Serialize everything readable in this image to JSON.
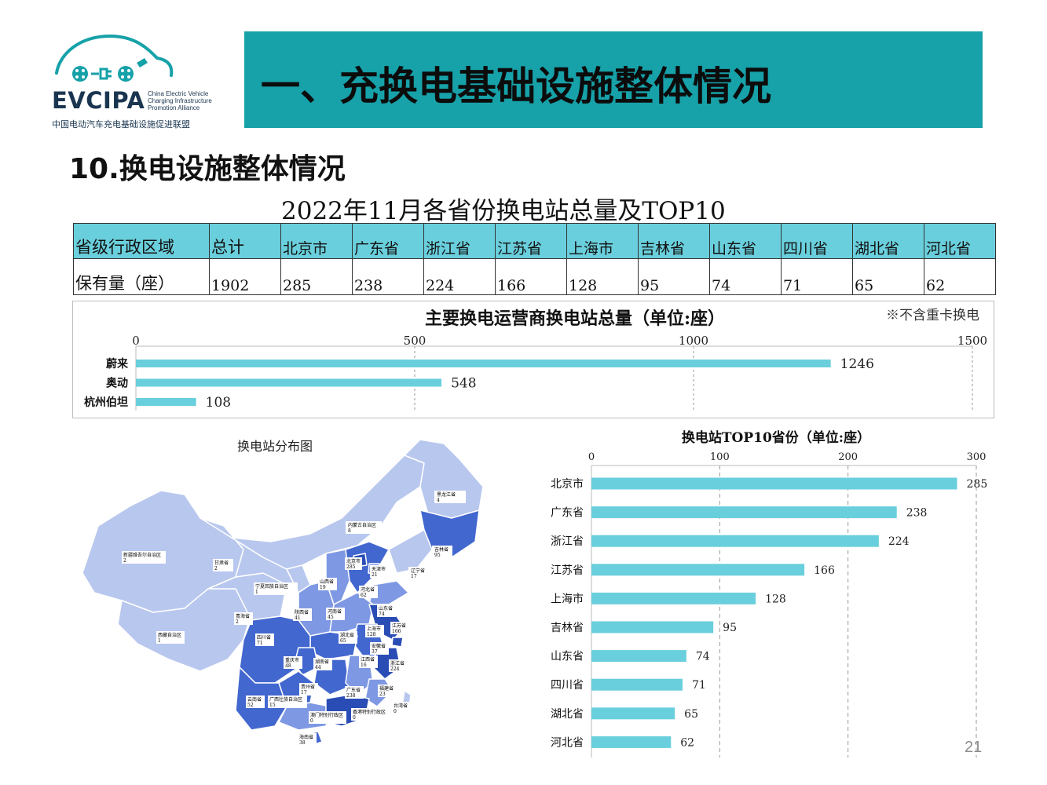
{
  "logo": {
    "acronym": "EVCIPA",
    "english_lines": [
      "China Electric Vehicle",
      "Charging Infrastructure",
      "Promotion Alliance"
    ],
    "chinese_name": "中国电动汽车充电基础设施促进联盟",
    "color": "#17a1a9"
  },
  "header": {
    "title": "一、充换电基础设施整体情况",
    "banner_color": "#17a1a9"
  },
  "section_title": "10.换电设施整体情况",
  "page_number": "21",
  "province_table": {
    "title": "2022年11月各省份换电站总量及TOP10",
    "header_color": "#6acfdc",
    "row_labels": [
      "省级行政区域",
      "保有量（座）"
    ],
    "total_label": "总计",
    "total_value": "1902",
    "columns": [
      "北京市",
      "广东省",
      "浙江省",
      "江苏省",
      "上海市",
      "吉林省",
      "山东省",
      "四川省",
      "湖北省",
      "河北省"
    ],
    "values": [
      "285",
      "238",
      "224",
      "166",
      "128",
      "95",
      "74",
      "71",
      "65",
      "62"
    ]
  },
  "chart_data": [
    {
      "type": "bar",
      "orientation": "horizontal",
      "title": "主要换电运营商换电站总量（单位:座）",
      "note": "※不含重卡换电",
      "categories": [
        "蔚来",
        "奥动",
        "杭州伯坦"
      ],
      "values": [
        1246,
        548,
        108
      ],
      "xlim": [
        0,
        1500
      ],
      "xticks": [
        0,
        500,
        1000,
        1500
      ],
      "xtick_labels": [
        "0",
        "500",
        "1000",
        "1500"
      ],
      "axis_position": "top",
      "grid": true,
      "bar_color": "#6acfdc"
    },
    {
      "type": "bar",
      "orientation": "horizontal",
      "title": "换电站TOP10省份（单位:座）",
      "categories": [
        "北京市",
        "广东省",
        "浙江省",
        "江苏省",
        "上海市",
        "吉林省",
        "山东省",
        "四川省",
        "湖北省",
        "河北省"
      ],
      "values": [
        285,
        238,
        224,
        166,
        128,
        95,
        74,
        71,
        65,
        62
      ],
      "xlim": [
        0,
        300
      ],
      "xticks": [
        0,
        100,
        200,
        300
      ],
      "xtick_labels": [
        "0",
        "100",
        "200",
        "300"
      ],
      "axis_position": "top",
      "grid": true,
      "bar_color": "#6acfdc"
    }
  ],
  "map": {
    "title": "换电站分布图",
    "colors": {
      "light": "#b8c7ee",
      "mid": "#7e98e3",
      "dark": "#4267cf",
      "darkest": "#2a4db5"
    },
    "labels": [
      {
        "name": "黑龙江省",
        "value": "4"
      },
      {
        "name": "吉林省",
        "value": "95"
      },
      {
        "name": "辽宁省",
        "value": "17"
      },
      {
        "name": "内蒙古自治区",
        "value": "8"
      },
      {
        "name": "新疆维吾尔自治区",
        "value": "2"
      },
      {
        "name": "甘肃省",
        "value": "2"
      },
      {
        "name": "宁夏回族自治区",
        "value": "1"
      },
      {
        "name": "北京市",
        "value": "285"
      },
      {
        "name": "天津市",
        "value": "21"
      },
      {
        "name": "河北省",
        "value": "62"
      },
      {
        "name": "山西省",
        "value": "19"
      },
      {
        "name": "山东省",
        "value": "74"
      },
      {
        "name": "青海省",
        "value": "2"
      },
      {
        "name": "陕西省",
        "value": "41"
      },
      {
        "name": "河南省",
        "value": "45"
      },
      {
        "name": "江苏省",
        "value": "166"
      },
      {
        "name": "上海市",
        "value": "128"
      },
      {
        "name": "西藏自治区",
        "value": "1"
      },
      {
        "name": "四川省",
        "value": "71"
      },
      {
        "name": "湖北省",
        "value": "65"
      },
      {
        "name": "安徽省",
        "value": "37"
      },
      {
        "name": "重庆市",
        "value": "48"
      },
      {
        "name": "湖南省",
        "value": "44"
      },
      {
        "name": "江西省",
        "value": "16"
      },
      {
        "name": "浙江省",
        "value": "224"
      },
      {
        "name": "贵州省",
        "value": "17"
      },
      {
        "name": "福建省",
        "value": "23"
      },
      {
        "name": "广东省",
        "value": "238"
      },
      {
        "name": "云南省",
        "value": "52"
      },
      {
        "name": "广西壮族自治区",
        "value": "15"
      },
      {
        "name": "台湾省",
        "value": "0"
      },
      {
        "name": "澳门特别行政区",
        "value": "0"
      },
      {
        "name": "香港特别行政区",
        "value": "0"
      },
      {
        "name": "海南省",
        "value": "38"
      }
    ]
  }
}
